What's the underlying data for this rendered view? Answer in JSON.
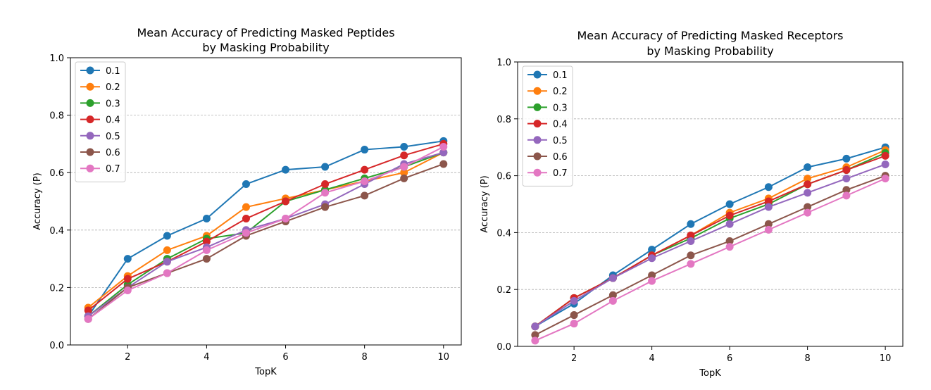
{
  "chart_data": [
    {
      "type": "line",
      "title_lines": [
        "Mean Accuracy of Predicting Masked Peptides",
        "by Masking Probability"
      ],
      "xlabel": "TopK",
      "ylabel": "Accuracy (P)",
      "xlim": [
        0.55,
        10.45
      ],
      "ylim": [
        0.0,
        1.0
      ],
      "xticks": [
        2,
        4,
        6,
        8,
        10
      ],
      "yticks": [
        0.0,
        0.2,
        0.4,
        0.6,
        0.8,
        1.0
      ],
      "ytick_labels": [
        "0.0",
        "0.2",
        "0.4",
        "0.6",
        "0.8",
        "1.0"
      ],
      "grid": "horizontal-dashed",
      "legend_position": "top-left",
      "x": [
        1,
        2,
        3,
        4,
        5,
        6,
        7,
        8,
        9,
        10
      ],
      "series": [
        {
          "name": "0.1",
          "color": "#1f77b4",
          "values": [
            0.1,
            0.3,
            0.38,
            0.44,
            0.56,
            0.61,
            0.62,
            0.68,
            0.69,
            0.71
          ]
        },
        {
          "name": "0.2",
          "color": "#ff7f0e",
          "values": [
            0.13,
            0.24,
            0.33,
            0.38,
            0.48,
            0.51,
            0.54,
            0.57,
            0.6,
            0.67
          ]
        },
        {
          "name": "0.3",
          "color": "#2ca02c",
          "values": [
            0.1,
            0.21,
            0.3,
            0.37,
            0.39,
            0.5,
            0.54,
            0.58,
            0.62,
            0.67
          ]
        },
        {
          "name": "0.4",
          "color": "#d62728",
          "values": [
            0.12,
            0.23,
            0.29,
            0.36,
            0.44,
            0.5,
            0.56,
            0.61,
            0.66,
            0.7
          ]
        },
        {
          "name": "0.5",
          "color": "#9467bd",
          "values": [
            0.1,
            0.2,
            0.29,
            0.34,
            0.4,
            0.44,
            0.49,
            0.56,
            0.63,
            0.67
          ]
        },
        {
          "name": "0.6",
          "color": "#8c564b",
          "values": [
            0.09,
            0.2,
            0.25,
            0.3,
            0.38,
            0.43,
            0.48,
            0.52,
            0.58,
            0.63
          ]
        },
        {
          "name": "0.7",
          "color": "#e377c2",
          "values": [
            0.09,
            0.19,
            0.25,
            0.33,
            0.39,
            0.44,
            0.53,
            0.57,
            0.62,
            0.69
          ]
        }
      ]
    },
    {
      "type": "line",
      "title_lines": [
        "Mean Accuracy of Predicting Masked Receptors",
        "by Masking Probability"
      ],
      "xlabel": "TopK",
      "ylabel": "Accuracy (P)",
      "xlim": [
        0.55,
        10.45
      ],
      "ylim": [
        0.0,
        1.0
      ],
      "xticks": [
        2,
        4,
        6,
        8,
        10
      ],
      "yticks": [
        0.0,
        0.2,
        0.4,
        0.6,
        0.8,
        1.0
      ],
      "ytick_labels": [
        "0.0",
        "0.2",
        "0.4",
        "0.6",
        "0.8",
        "1.0"
      ],
      "grid": "horizontal-dashed",
      "legend_position": "top-left",
      "x": [
        1,
        2,
        3,
        4,
        5,
        6,
        7,
        8,
        9,
        10
      ],
      "series": [
        {
          "name": "0.1",
          "color": "#1f77b4",
          "values": [
            0.07,
            0.15,
            0.25,
            0.34,
            0.43,
            0.5,
            0.56,
            0.63,
            0.66,
            0.7
          ]
        },
        {
          "name": "0.2",
          "color": "#ff7f0e",
          "values": [
            0.07,
            0.17,
            0.24,
            0.32,
            0.39,
            0.47,
            0.52,
            0.59,
            0.63,
            0.69
          ]
        },
        {
          "name": "0.3",
          "color": "#2ca02c",
          "values": [
            0.07,
            0.17,
            0.24,
            0.32,
            0.38,
            0.45,
            0.5,
            0.57,
            0.62,
            0.68
          ]
        },
        {
          "name": "0.4",
          "color": "#d62728",
          "values": [
            0.07,
            0.17,
            0.24,
            0.32,
            0.39,
            0.46,
            0.51,
            0.57,
            0.62,
            0.67
          ]
        },
        {
          "name": "0.5",
          "color": "#9467bd",
          "values": [
            0.07,
            0.16,
            0.24,
            0.31,
            0.37,
            0.43,
            0.49,
            0.54,
            0.59,
            0.64
          ]
        },
        {
          "name": "0.6",
          "color": "#8c564b",
          "values": [
            0.04,
            0.11,
            0.18,
            0.25,
            0.32,
            0.37,
            0.43,
            0.49,
            0.55,
            0.6
          ]
        },
        {
          "name": "0.7",
          "color": "#e377c2",
          "values": [
            0.02,
            0.08,
            0.16,
            0.23,
            0.29,
            0.35,
            0.41,
            0.47,
            0.53,
            0.59
          ]
        }
      ]
    }
  ]
}
